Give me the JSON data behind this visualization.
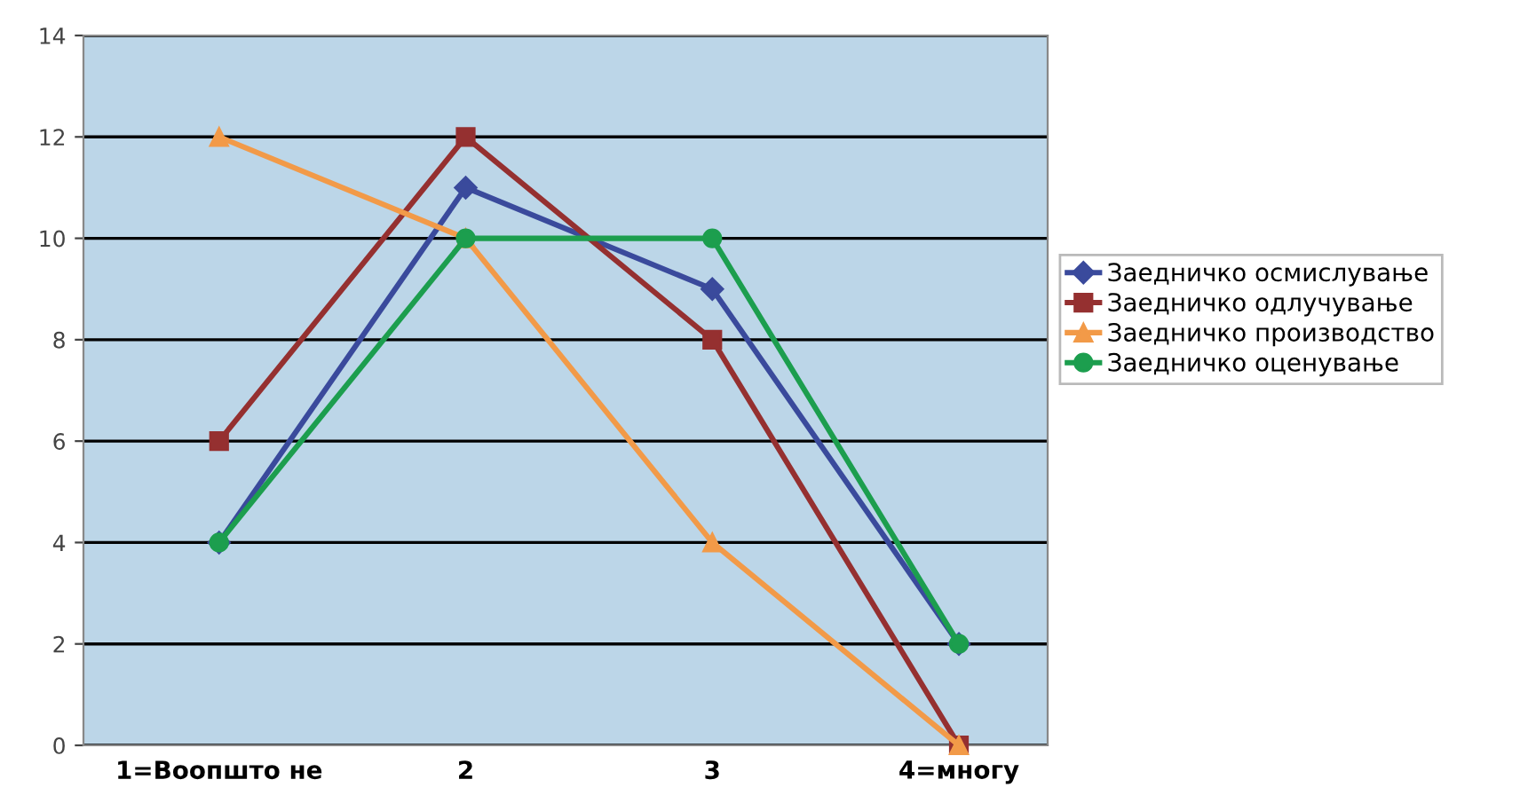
{
  "chart_data": {
    "type": "line",
    "categories": [
      "1=Воопшто не",
      "2",
      "3",
      "4=многу"
    ],
    "series": [
      {
        "name": "Заедничко осмислување",
        "color": "#3a4a9c",
        "marker": "diamond",
        "values": [
          4,
          11,
          9,
          2
        ]
      },
      {
        "name": "Заедничко одлучување",
        "color": "#953030",
        "marker": "square",
        "values": [
          6,
          12,
          8,
          0
        ]
      },
      {
        "name": "Заедничко производство",
        "color": "#f29a48",
        "marker": "triangle",
        "values": [
          12,
          10,
          4,
          0
        ]
      },
      {
        "name": "Заедничко оценување",
        "color": "#1c9e4e",
        "marker": "circle",
        "values": [
          4,
          10,
          10,
          2
        ]
      }
    ],
    "ylim": [
      0,
      14
    ],
    "yticks": [
      0,
      2,
      4,
      6,
      8,
      10,
      12,
      14
    ],
    "grid": "y",
    "legend": "right",
    "line_style": "solid"
  }
}
